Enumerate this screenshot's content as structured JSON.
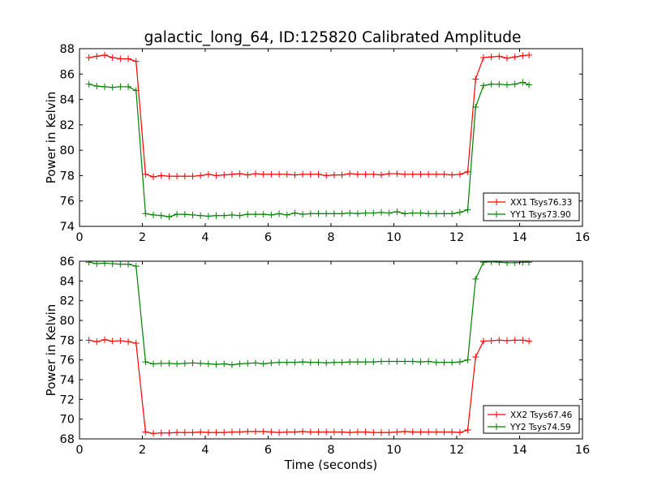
{
  "figure": {
    "title": "galactic_long_64, ID:125820 Calibrated Amplitude"
  },
  "chart_data": [
    {
      "type": "line",
      "title": "galactic_long_64, ID:125820 Calibrated Amplitude",
      "xlabel": "",
      "ylabel": "Power in Kelvin",
      "xlim": [
        0,
        16
      ],
      "ylim": [
        74,
        88
      ],
      "xticks": [
        0,
        2,
        4,
        6,
        8,
        10,
        12,
        14,
        16
      ],
      "yticks": [
        74,
        76,
        78,
        80,
        82,
        84,
        86,
        88
      ],
      "grid": false,
      "legend": "lower-right",
      "x": [
        0.3,
        0.55,
        0.8,
        1.05,
        1.3,
        1.55,
        1.8,
        2.1,
        2.35,
        2.6,
        2.85,
        3.1,
        3.35,
        3.6,
        3.85,
        4.1,
        4.35,
        4.6,
        4.85,
        5.1,
        5.35,
        5.6,
        5.85,
        6.1,
        6.35,
        6.6,
        6.85,
        7.1,
        7.35,
        7.6,
        7.85,
        8.1,
        8.35,
        8.6,
        8.85,
        9.1,
        9.35,
        9.6,
        9.85,
        10.1,
        10.35,
        10.6,
        10.85,
        11.1,
        11.35,
        11.6,
        11.85,
        12.1,
        12.35,
        12.6,
        12.85,
        13.1,
        13.35,
        13.6,
        13.85,
        14.1,
        14.3
      ],
      "series": [
        {
          "name": "XX1 Tsys76.33",
          "color": "#ff0000",
          "values": [
            87.3,
            87.4,
            87.5,
            87.3,
            87.2,
            87.2,
            87.0,
            78.1,
            77.9,
            78.0,
            77.95,
            77.95,
            77.95,
            77.95,
            78.0,
            78.1,
            78.0,
            78.05,
            78.1,
            78.15,
            78.05,
            78.15,
            78.1,
            78.1,
            78.1,
            78.1,
            78.05,
            78.1,
            78.1,
            78.1,
            78.0,
            78.05,
            78.05,
            78.15,
            78.1,
            78.1,
            78.1,
            78.05,
            78.15,
            78.15,
            78.1,
            78.1,
            78.1,
            78.1,
            78.1,
            78.1,
            78.05,
            78.1,
            78.3,
            85.6,
            87.3,
            87.35,
            87.4,
            87.25,
            87.35,
            87.45,
            87.5
          ]
        },
        {
          "name": "YY1 Tsys73.90",
          "color": "#008000",
          "values": [
            85.2,
            85.05,
            85.0,
            84.95,
            85.0,
            85.0,
            84.7,
            75.0,
            74.9,
            74.85,
            74.75,
            74.95,
            74.95,
            74.9,
            74.85,
            74.8,
            74.85,
            74.85,
            74.9,
            74.85,
            74.95,
            74.95,
            74.95,
            74.9,
            75.0,
            74.9,
            75.05,
            74.95,
            75.0,
            75.0,
            75.0,
            75.0,
            75.0,
            75.05,
            75.0,
            75.05,
            75.05,
            75.1,
            75.05,
            75.15,
            75.0,
            75.05,
            75.05,
            75.0,
            75.0,
            75.0,
            75.0,
            75.1,
            75.3,
            83.4,
            85.1,
            85.2,
            85.2,
            85.15,
            85.2,
            85.35,
            85.15
          ]
        }
      ]
    },
    {
      "type": "line",
      "title": "",
      "xlabel": "Time (seconds)",
      "ylabel": "Power in Kelvin",
      "xlim": [
        0,
        16
      ],
      "ylim": [
        68,
        86
      ],
      "xticks": [
        0,
        2,
        4,
        6,
        8,
        10,
        12,
        14,
        16
      ],
      "yticks": [
        68,
        70,
        72,
        74,
        76,
        78,
        80,
        82,
        84,
        86
      ],
      "grid": false,
      "legend": "lower-right",
      "x": [
        0.3,
        0.55,
        0.8,
        1.05,
        1.3,
        1.55,
        1.8,
        2.1,
        2.35,
        2.6,
        2.85,
        3.1,
        3.35,
        3.6,
        3.85,
        4.1,
        4.35,
        4.6,
        4.85,
        5.1,
        5.35,
        5.6,
        5.85,
        6.1,
        6.35,
        6.6,
        6.85,
        7.1,
        7.35,
        7.6,
        7.85,
        8.1,
        8.35,
        8.6,
        8.85,
        9.1,
        9.35,
        9.6,
        9.85,
        10.1,
        10.35,
        10.6,
        10.85,
        11.1,
        11.35,
        11.6,
        11.85,
        12.1,
        12.35,
        12.6,
        12.85,
        13.1,
        13.35,
        13.6,
        13.85,
        14.1,
        14.3
      ],
      "series": [
        {
          "name": "XX2 Tsys67.46",
          "color": "#ff0000",
          "values": [
            78.0,
            77.85,
            78.05,
            77.9,
            77.95,
            77.85,
            77.7,
            68.7,
            68.55,
            68.6,
            68.6,
            68.65,
            68.65,
            68.65,
            68.7,
            68.65,
            68.65,
            68.65,
            68.7,
            68.7,
            68.75,
            68.75,
            68.75,
            68.7,
            68.65,
            68.7,
            68.7,
            68.75,
            68.7,
            68.7,
            68.7,
            68.7,
            68.7,
            68.65,
            68.7,
            68.7,
            68.65,
            68.65,
            68.65,
            68.7,
            68.75,
            68.7,
            68.7,
            68.7,
            68.7,
            68.7,
            68.7,
            68.65,
            68.9,
            76.3,
            77.9,
            77.95,
            78.0,
            77.95,
            78.0,
            78.0,
            77.9
          ]
        },
        {
          "name": "YY2 Tsys74.59",
          "color": "#008000",
          "values": [
            85.9,
            85.75,
            85.8,
            85.75,
            85.7,
            85.7,
            85.5,
            75.8,
            75.6,
            75.65,
            75.65,
            75.6,
            75.65,
            75.7,
            75.65,
            75.6,
            75.55,
            75.6,
            75.5,
            75.6,
            75.65,
            75.7,
            75.6,
            75.7,
            75.75,
            75.75,
            75.75,
            75.8,
            75.75,
            75.75,
            75.7,
            75.75,
            75.75,
            75.8,
            75.8,
            75.8,
            75.8,
            75.85,
            75.85,
            75.85,
            75.85,
            75.85,
            75.8,
            75.85,
            75.75,
            75.75,
            75.75,
            75.8,
            76.0,
            84.2,
            85.9,
            85.95,
            85.9,
            85.85,
            85.85,
            85.9,
            85.9
          ]
        }
      ]
    }
  ]
}
